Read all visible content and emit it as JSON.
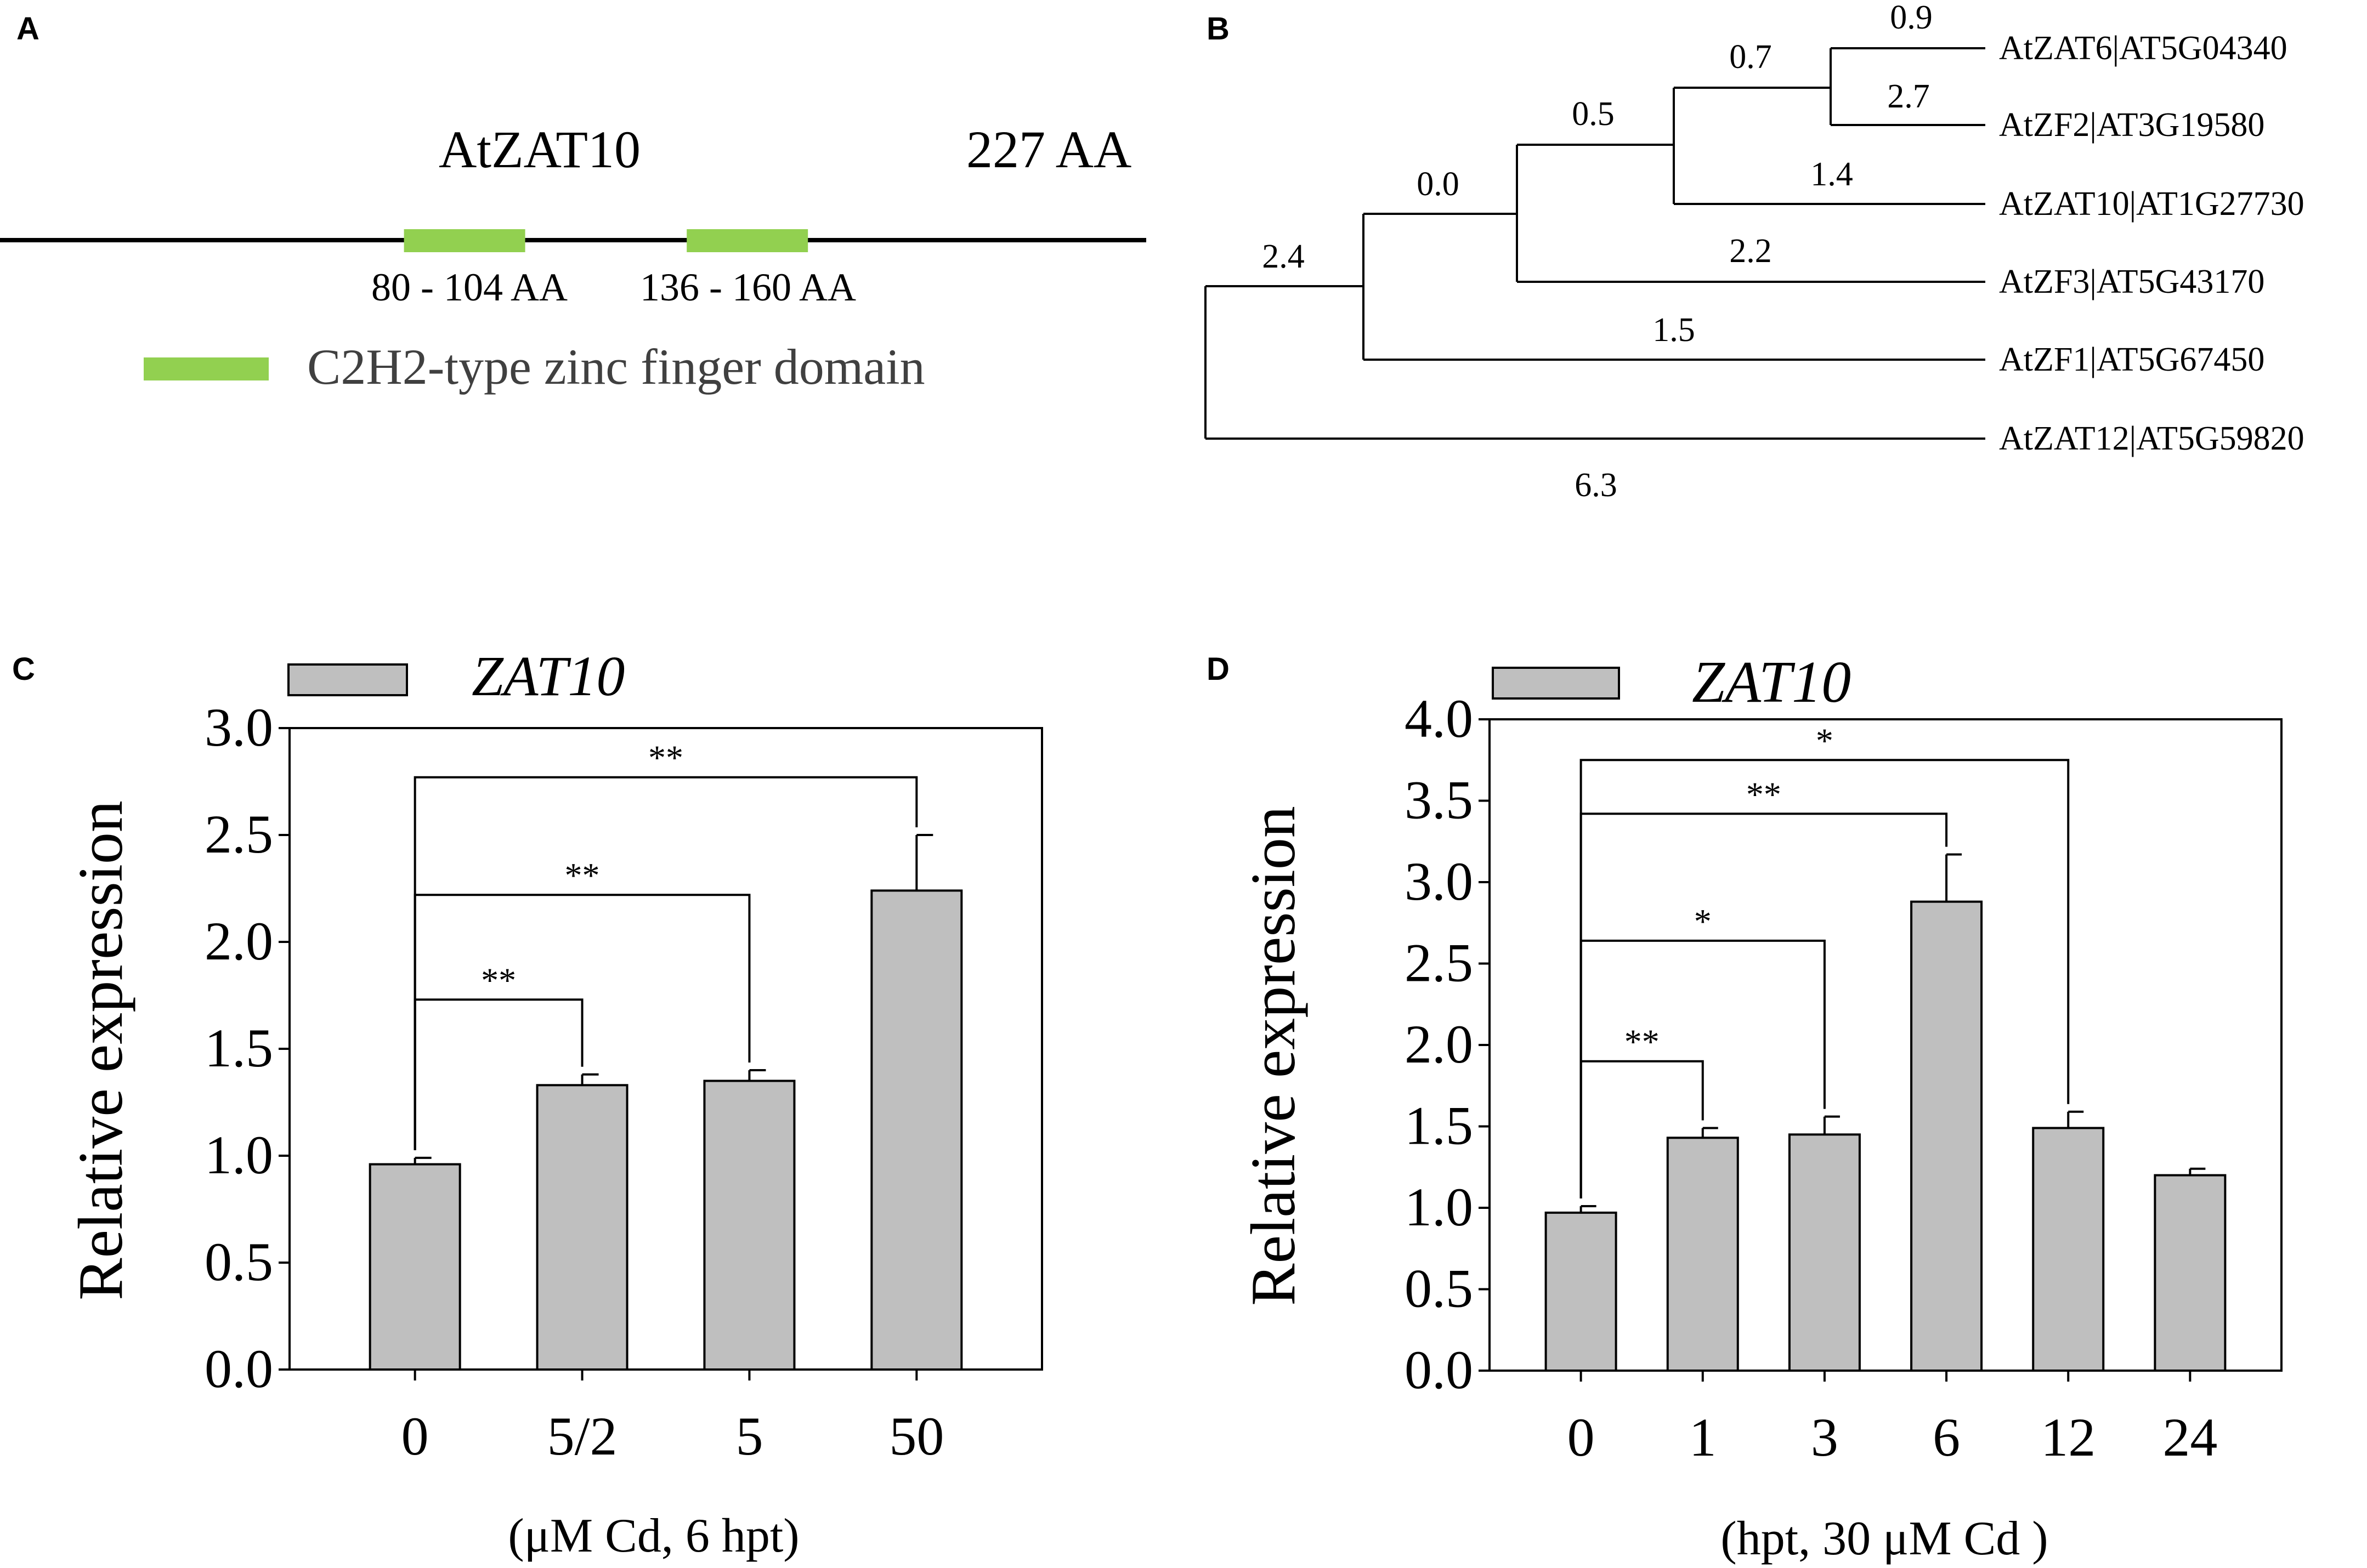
{
  "colors": {
    "domain": "#92d050",
    "bar": "#bfbfbf",
    "line": "#000000",
    "text": "#000000",
    "legend_text": "#404040"
  },
  "panel_a": {
    "letter": "A",
    "protein": "AtZAT10",
    "length": "227 AA",
    "domains": [
      {
        "label": "80 - 104 AA",
        "start": 80,
        "end": 104
      },
      {
        "label": "136 - 160 AA",
        "start": 136,
        "end": 160
      }
    ],
    "legend": "C2H2-type zinc finger domain"
  },
  "panel_b": {
    "letter": "B",
    "branch_values": [
      "0.9",
      "0.7",
      "2.7",
      "0.5",
      "1.4",
      "0.0",
      "2.2",
      "2.4",
      "1.5",
      "6.3"
    ],
    "leaves": [
      "AtZAT6|AT5G04340",
      "AtZF2|AT3G19580",
      "AtZAT10|AT1G27730",
      "AtZF3|AT5G43170",
      "AtZF1|AT5G67450",
      "AtZAT12|AT5G59820"
    ]
  },
  "chart_data": [
    {
      "panel": "C",
      "type": "bar",
      "legend": "ZAT10",
      "categories": [
        "0",
        "5/2",
        "5",
        "50"
      ],
      "values": [
        0.96,
        1.33,
        1.35,
        2.24
      ],
      "errors": [
        0.03,
        0.05,
        0.05,
        0.26
      ],
      "ylabel": "Relative expression",
      "xlabel": "(μM Cd, 6 hpt)",
      "ylim": [
        0,
        3.0
      ],
      "yticks": [
        "0.0",
        "0.5",
        "1.0",
        "1.5",
        "2.0",
        "2.5",
        "3.0"
      ],
      "significance": [
        {
          "from": 0,
          "to": 1,
          "label": "**",
          "level": 1.73
        },
        {
          "from": 0,
          "to": 2,
          "label": "**",
          "level": 2.22
        },
        {
          "from": 0,
          "to": 3,
          "label": "**",
          "level": 2.77
        }
      ]
    },
    {
      "panel": "D",
      "type": "bar",
      "legend": "ZAT10",
      "categories": [
        "0",
        "1",
        "3",
        "6",
        "12",
        "24"
      ],
      "values": [
        0.97,
        1.43,
        1.45,
        2.88,
        1.49,
        1.2
      ],
      "errors": [
        0.04,
        0.06,
        0.11,
        0.29,
        0.1,
        0.04
      ],
      "ylabel": "Relative expression",
      "xlabel": "(hpt, 30 μM Cd )",
      "ylim": [
        0,
        4.0
      ],
      "yticks": [
        "0.0",
        "0.5",
        "1.0",
        "1.5",
        "2.0",
        "2.5",
        "3.0",
        "3.5",
        "4.0"
      ],
      "significance": [
        {
          "from": 0,
          "to": 1,
          "label": "**",
          "level": 1.9
        },
        {
          "from": 0,
          "to": 2,
          "label": "*",
          "level": 2.64
        },
        {
          "from": 0,
          "to": 3,
          "label": "**",
          "level": 3.42
        },
        {
          "from": 0,
          "to": 4,
          "label": "*",
          "level": 3.75
        }
      ]
    }
  ]
}
